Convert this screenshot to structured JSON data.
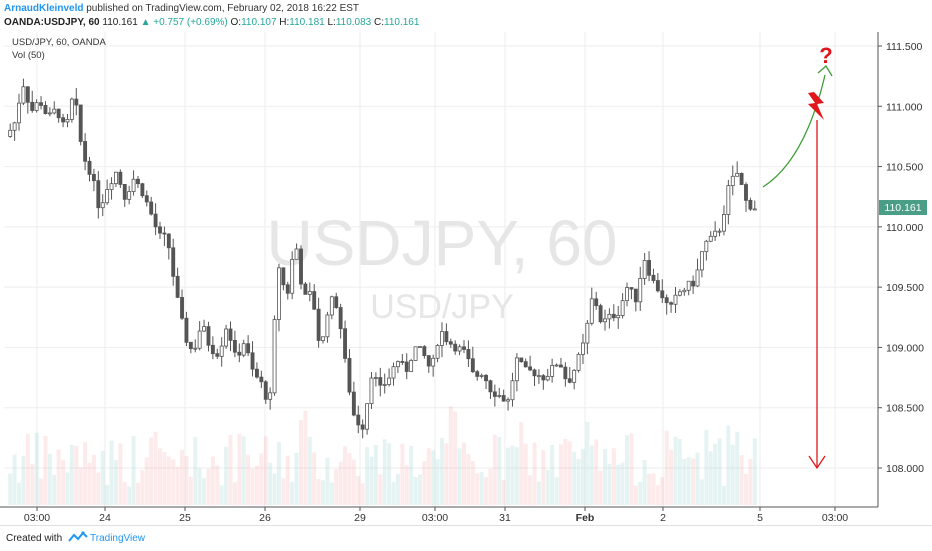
{
  "header": {
    "author": "ArnaudKleinveld",
    "published": " published on TradingView.com, February 02, 2018 16:22 EST",
    "symbol": "OANDA:USDJPY, 60",
    "last": "110.161",
    "change": "▲ +0.757 (+0.69%)",
    "o_label": "O:",
    "o_value": "110.107",
    "h_label": "H:",
    "h_value": "110.181",
    "l_label": "L:",
    "l_value": "110.083",
    "c_label": "C:",
    "c_value": "110.161"
  },
  "pane": {
    "symbol_label": "USD/JPY, 60, OANDA",
    "volume_label": "Vol (50)"
  },
  "watermark": {
    "main": "USDJPY, 60",
    "sub": "USD/JPY"
  },
  "price_badge": "110.161",
  "footer": {
    "created_with": "Created with",
    "brand": "TradingView"
  },
  "colors": {
    "up": "#26a69a",
    "down": "#ef5350",
    "candle_body": "#555555",
    "badge": "#4a9e86",
    "annotation_green": "#3f9e38",
    "annotation_red": "#e0161b"
  },
  "icons": [
    "tradingview-logo-icon",
    "lightning-icon",
    "question-mark-icon"
  ],
  "annotation": {
    "question_mark": "?"
  },
  "chart_data": {
    "type": "candlestick",
    "y_ticks": [
      "111.500",
      "111.000",
      "110.500",
      "110.000",
      "109.500",
      "109.000",
      "108.500",
      "108.000"
    ],
    "ylim": [
      107.65,
      111.75
    ],
    "x_ticks": [
      "03:00",
      "24",
      "25",
      "26",
      "29",
      "03:00",
      "31",
      "Feb",
      "2",
      "5",
      "03:00"
    ],
    "close_path": [
      [
        0,
        110.75
      ],
      [
        1,
        110.85
      ],
      [
        2,
        111.2
      ],
      [
        3,
        110.96
      ],
      [
        4,
        111.05
      ],
      [
        5,
        110.9
      ],
      [
        6,
        110.98
      ],
      [
        7,
        110.78
      ],
      [
        8,
        111.12
      ],
      [
        9,
        110.6
      ],
      [
        10,
        110.45
      ],
      [
        11,
        110.15
      ],
      [
        12,
        110.35
      ],
      [
        13,
        110.46
      ],
      [
        14,
        110.25
      ],
      [
        15,
        110.4
      ],
      [
        16,
        110.3
      ],
      [
        17,
        110.12
      ],
      [
        18,
        109.92
      ],
      [
        19,
        109.9
      ],
      [
        20,
        109.45
      ],
      [
        21,
        109.1
      ],
      [
        22,
        108.95
      ],
      [
        23,
        109.2
      ],
      [
        24,
        109.0
      ],
      [
        25,
        108.95
      ],
      [
        26,
        109.2
      ],
      [
        27,
        108.9
      ],
      [
        28,
        109.05
      ],
      [
        29,
        108.8
      ],
      [
        30,
        108.7
      ],
      [
        31,
        108.52
      ],
      [
        32,
        109.7
      ],
      [
        33,
        109.4
      ],
      [
        34,
        109.9
      ],
      [
        35,
        109.4
      ],
      [
        36,
        109.45
      ],
      [
        37,
        108.95
      ],
      [
        38,
        109.4
      ],
      [
        39,
        109.35
      ],
      [
        40,
        108.8
      ],
      [
        41,
        108.4
      ],
      [
        42,
        108.35
      ],
      [
        43,
        108.8
      ],
      [
        44,
        108.65
      ],
      [
        45,
        108.75
      ],
      [
        46,
        108.9
      ],
      [
        47,
        108.8
      ],
      [
        48,
        109.0
      ],
      [
        49,
        108.95
      ],
      [
        50,
        108.8
      ],
      [
        51,
        109.15
      ],
      [
        52,
        109.05
      ],
      [
        53,
        109.0
      ],
      [
        54,
        108.95
      ],
      [
        55,
        108.75
      ],
      [
        56,
        108.8
      ],
      [
        57,
        108.65
      ],
      [
        58,
        108.6
      ],
      [
        59,
        108.55
      ],
      [
        60,
        108.9
      ],
      [
        61,
        108.8
      ],
      [
        62,
        108.8
      ],
      [
        63,
        108.75
      ],
      [
        64,
        108.8
      ],
      [
        65,
        108.9
      ],
      [
        66,
        108.7
      ],
      [
        67,
        108.85
      ],
      [
        68,
        109.05
      ],
      [
        69,
        109.45
      ],
      [
        70,
        109.2
      ],
      [
        71,
        109.25
      ],
      [
        72,
        109.3
      ],
      [
        73,
        109.5
      ],
      [
        74,
        109.4
      ],
      [
        75,
        109.75
      ],
      [
        76,
        109.55
      ],
      [
        77,
        109.45
      ],
      [
        78,
        109.3
      ],
      [
        79,
        109.45
      ],
      [
        80,
        109.5
      ],
      [
        81,
        109.55
      ],
      [
        82,
        109.85
      ],
      [
        83,
        109.9
      ],
      [
        84,
        110.0
      ],
      [
        85,
        110.35
      ],
      [
        86,
        110.45
      ],
      [
        87,
        110.2
      ],
      [
        88,
        110.161
      ]
    ],
    "volume_series": "hourly volume bars (relative, up = green tint, down = red tint)"
  }
}
